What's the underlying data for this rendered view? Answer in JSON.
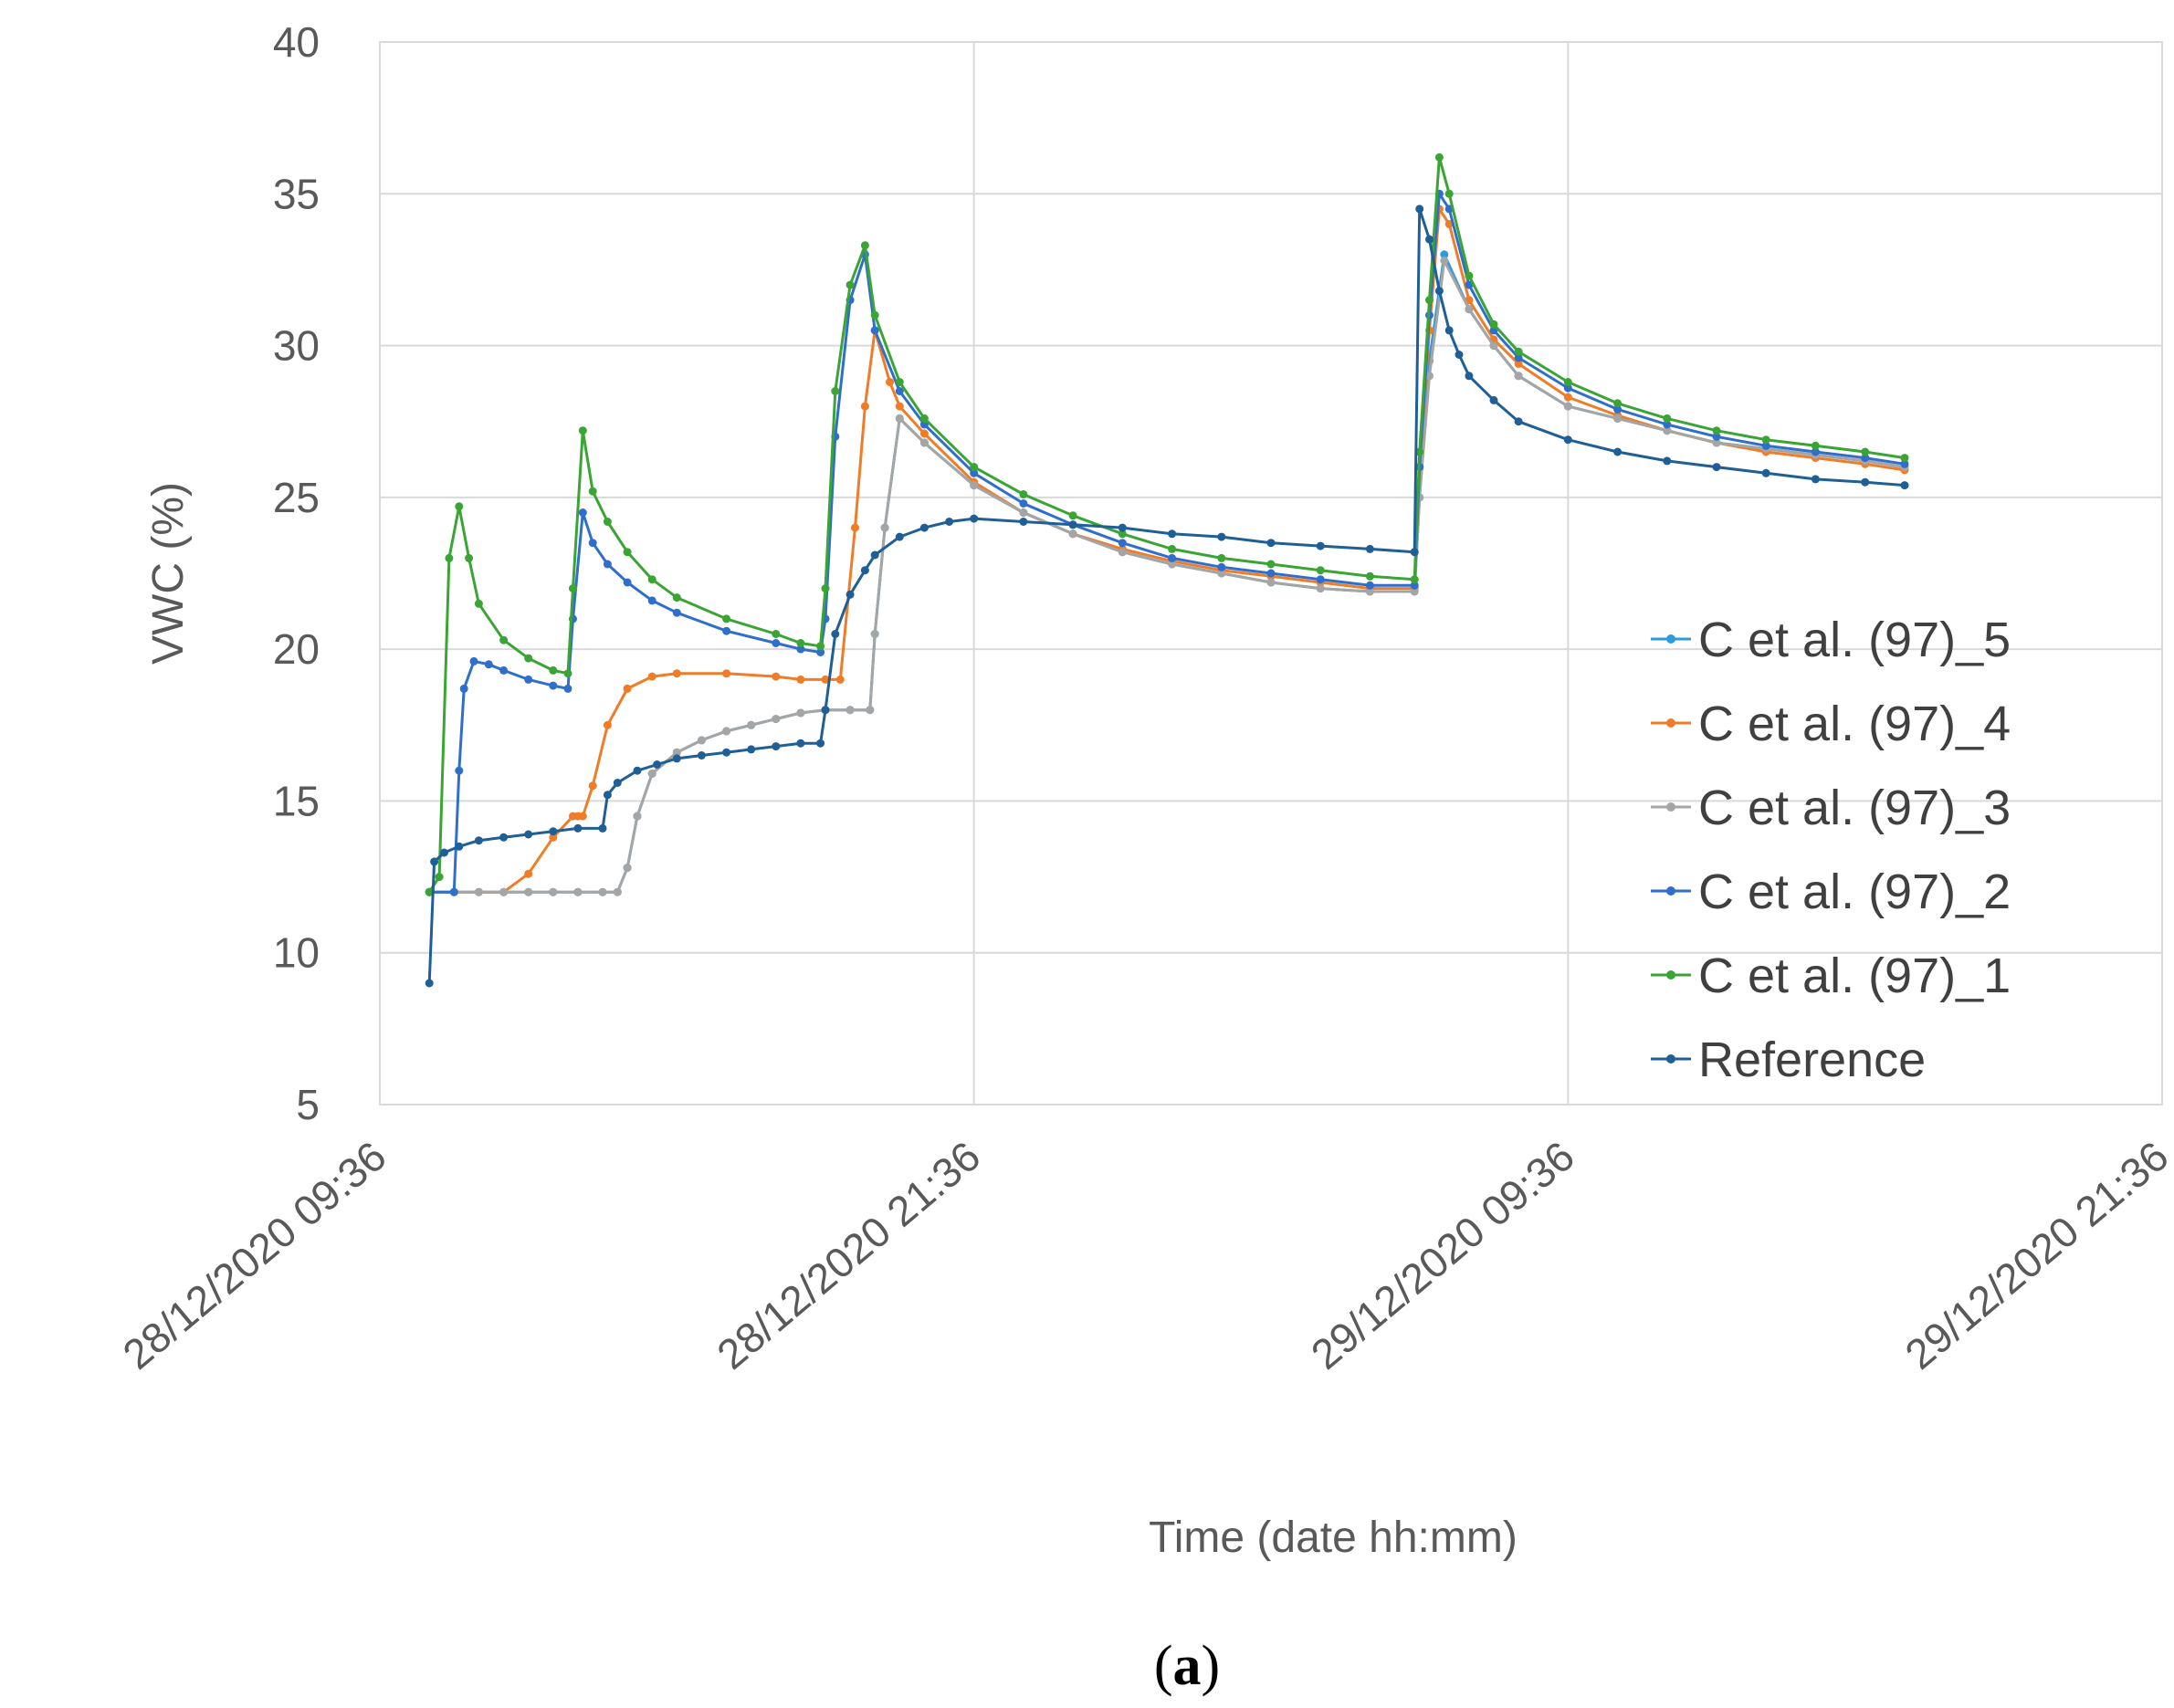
{
  "chart_data": {
    "type": "line",
    "title": "",
    "xlabel": "Time (date hh:mm)",
    "ylabel": "VWC (%)",
    "caption": {
      "open": "(",
      "letter": "a",
      "close": ")"
    },
    "ylim": [
      5,
      40
    ],
    "y_ticks": [
      "5",
      "10",
      "15",
      "20",
      "25",
      "30",
      "35",
      "40"
    ],
    "xlim": [
      0,
      36
    ],
    "x_ticks": [
      {
        "value": 0,
        "label": "28/12/2020 09:36"
      },
      {
        "value": 12,
        "label": "28/12/2020 21:36"
      },
      {
        "value": 24,
        "label": "29/12/2020 09:36"
      },
      {
        "value": 36,
        "label": "29/12/2020 21:36"
      }
    ],
    "x_units": "hours after 28/12/2020 09:36",
    "grid": true,
    "legend_position": "right",
    "series": [
      {
        "name": "C et al. (97)_5",
        "color": "#2E9BDA",
        "x": [
          1.0,
          1.5,
          2.0,
          2.5,
          3.0,
          3.5,
          4.0,
          4.5,
          4.8,
          5.0,
          5.2,
          5.5,
          6.0,
          6.5,
          7.0,
          7.5,
          8.0,
          8.5,
          9.0,
          9.5,
          9.9,
          10.0,
          10.2,
          10.5,
          11.0,
          12.0,
          13.0,
          14.0,
          15.0,
          16.0,
          17.0,
          18.0,
          19.0,
          20.0,
          20.9,
          21.0,
          21.2,
          21.5,
          22.0,
          22.5,
          23.0,
          24.0,
          25.0,
          26.0,
          27.0,
          28.0,
          29.0,
          30.0,
          30.8
        ],
        "y": [
          12,
          12,
          12,
          12,
          12,
          12,
          12,
          12,
          12,
          12.8,
          14.5,
          15.9,
          16.6,
          17.0,
          17.3,
          17.5,
          17.7,
          17.9,
          18.0,
          18.0,
          18.0,
          20.5,
          24.0,
          27.6,
          26.8,
          25.4,
          24.5,
          23.8,
          23.2,
          22.8,
          22.5,
          22.2,
          22.0,
          21.9,
          21.9,
          25.0,
          29.5,
          33.0,
          31.2,
          30.0,
          29.0,
          28.0,
          27.6,
          27.2,
          26.8,
          26.6,
          26.4,
          26.2,
          26.0
        ]
      },
      {
        "name": "C et al. (97)_4",
        "color": "#F07C28",
        "x": [
          1.0,
          1.5,
          2.0,
          2.5,
          3.0,
          3.5,
          3.9,
          4.0,
          4.1,
          4.3,
          4.6,
          5.0,
          5.5,
          6.0,
          7.0,
          8.0,
          8.5,
          9.0,
          9.3,
          9.6,
          9.8,
          10.0,
          10.3,
          10.5,
          11.0,
          12.0,
          13.0,
          14.0,
          15.0,
          16.0,
          17.0,
          18.0,
          19.0,
          20.0,
          20.9,
          21.0,
          21.2,
          21.4,
          21.6,
          22.0,
          22.5,
          23.0,
          24.0,
          25.0,
          26.0,
          27.0,
          28.0,
          29.0,
          30.0,
          30.8
        ],
        "y": [
          12,
          12,
          12,
          12,
          12.6,
          13.8,
          14.5,
          14.5,
          14.5,
          15.5,
          17.5,
          18.7,
          19.1,
          19.2,
          19.2,
          19.1,
          19.0,
          19.0,
          19.0,
          24.0,
          28.0,
          30.5,
          28.8,
          28.0,
          27.1,
          25.5,
          24.5,
          23.8,
          23.3,
          22.9,
          22.6,
          22.4,
          22.2,
          22.0,
          22.0,
          26.0,
          30.5,
          34.5,
          34.0,
          31.5,
          30.2,
          29.4,
          28.3,
          27.7,
          27.2,
          26.8,
          26.5,
          26.3,
          26.1,
          25.9
        ]
      },
      {
        "name": "C et al. (97)_3",
        "color": "#A5A5A5",
        "x": [
          1.0,
          1.5,
          2.0,
          2.5,
          3.0,
          3.5,
          4.0,
          4.5,
          4.8,
          5.0,
          5.2,
          5.5,
          6.0,
          6.5,
          7.0,
          7.5,
          8.0,
          8.5,
          9.0,
          9.5,
          9.9,
          10.0,
          10.2,
          10.5,
          11.0,
          12.0,
          13.0,
          14.0,
          15.0,
          16.0,
          17.0,
          18.0,
          19.0,
          20.0,
          20.9,
          21.0,
          21.2,
          21.5,
          22.0,
          22.5,
          23.0,
          24.0,
          25.0,
          26.0,
          27.0,
          28.0,
          29.0,
          30.0,
          30.8
        ],
        "y": [
          12,
          12,
          12,
          12,
          12,
          12,
          12,
          12,
          12,
          12.8,
          14.5,
          15.9,
          16.6,
          17.0,
          17.3,
          17.5,
          17.7,
          17.9,
          18.0,
          18.0,
          18.0,
          20.5,
          24.0,
          27.6,
          26.8,
          25.4,
          24.5,
          23.8,
          23.2,
          22.8,
          22.5,
          22.2,
          22.0,
          21.9,
          21.9,
          25.0,
          29.0,
          32.8,
          31.2,
          30.0,
          29.0,
          28.0,
          27.6,
          27.2,
          26.8,
          26.6,
          26.4,
          26.2,
          26.0
        ]
      },
      {
        "name": "C et al. (97)_2",
        "color": "#2F6FCB",
        "x": [
          1.0,
          1.5,
          1.6,
          1.7,
          1.9,
          2.2,
          2.5,
          3.0,
          3.5,
          3.8,
          3.9,
          4.1,
          4.3,
          4.6,
          5.0,
          5.5,
          6.0,
          7.0,
          8.0,
          8.5,
          8.9,
          9.0,
          9.2,
          9.5,
          9.8,
          10.0,
          10.5,
          11.0,
          12.0,
          13.0,
          14.0,
          15.0,
          16.0,
          17.0,
          18.0,
          19.0,
          20.0,
          20.9,
          21.0,
          21.2,
          21.4,
          21.6,
          22.0,
          22.5,
          23.0,
          24.0,
          25.0,
          26.0,
          27.0,
          28.0,
          29.0,
          30.0,
          30.8
        ],
        "y": [
          12,
          12,
          16,
          18.7,
          19.6,
          19.5,
          19.3,
          19.0,
          18.8,
          18.7,
          21.0,
          24.5,
          23.5,
          22.8,
          22.2,
          21.6,
          21.2,
          20.6,
          20.2,
          20.0,
          19.9,
          21.0,
          27.0,
          31.5,
          33.0,
          30.5,
          28.5,
          27.4,
          25.8,
          24.8,
          24.1,
          23.5,
          23.0,
          22.7,
          22.5,
          22.3,
          22.1,
          22.1,
          26.0,
          31.0,
          35.0,
          34.5,
          32.0,
          30.5,
          29.6,
          28.6,
          27.9,
          27.4,
          27.0,
          26.7,
          26.5,
          26.3,
          26.1
        ]
      },
      {
        "name": "C et al. (97)_1",
        "color": "#3AA534",
        "x": [
          1.0,
          1.2,
          1.4,
          1.6,
          1.8,
          2.0,
          2.5,
          3.0,
          3.5,
          3.8,
          3.9,
          4.1,
          4.3,
          4.6,
          5.0,
          5.5,
          6.0,
          7.0,
          8.0,
          8.5,
          8.9,
          9.0,
          9.2,
          9.5,
          9.8,
          10.0,
          10.5,
          11.0,
          12.0,
          13.0,
          14.0,
          15.0,
          16.0,
          17.0,
          18.0,
          19.0,
          20.0,
          20.9,
          21.0,
          21.2,
          21.4,
          21.6,
          22.0,
          22.5,
          23.0,
          24.0,
          25.0,
          26.0,
          27.0,
          28.0,
          29.0,
          30.0,
          30.8
        ],
        "y": [
          12,
          12.5,
          23.0,
          24.7,
          23.0,
          21.5,
          20.3,
          19.7,
          19.3,
          19.2,
          22.0,
          27.2,
          25.2,
          24.2,
          23.2,
          22.3,
          21.7,
          21.0,
          20.5,
          20.2,
          20.1,
          22.0,
          28.5,
          32.0,
          33.3,
          31.0,
          28.8,
          27.6,
          26.0,
          25.1,
          24.4,
          23.8,
          23.3,
          23.0,
          22.8,
          22.6,
          22.4,
          22.3,
          26.5,
          31.5,
          36.2,
          35.0,
          32.3,
          30.7,
          29.8,
          28.8,
          28.1,
          27.6,
          27.2,
          26.9,
          26.7,
          26.5,
          26.3
        ]
      },
      {
        "name": "Reference",
        "color": "#1F5F96",
        "x": [
          1.0,
          1.1,
          1.3,
          1.6,
          2.0,
          2.5,
          3.0,
          3.5,
          4.0,
          4.5,
          4.6,
          4.8,
          5.2,
          5.6,
          6.0,
          6.5,
          7.0,
          7.5,
          8.0,
          8.5,
          8.9,
          9.0,
          9.2,
          9.5,
          9.8,
          10.0,
          10.5,
          11.0,
          11.5,
          12.0,
          13.0,
          14.0,
          15.0,
          16.0,
          17.0,
          18.0,
          19.0,
          20.0,
          20.9,
          21.0,
          21.2,
          21.4,
          21.6,
          21.8,
          22.0,
          22.5,
          23.0,
          24.0,
          25.0,
          26.0,
          27.0,
          28.0,
          29.0,
          30.0,
          30.8
        ],
        "y": [
          9,
          13.0,
          13.3,
          13.5,
          13.7,
          13.8,
          13.9,
          14.0,
          14.1,
          14.1,
          15.2,
          15.6,
          16.0,
          16.2,
          16.4,
          16.5,
          16.6,
          16.7,
          16.8,
          16.9,
          16.9,
          18.0,
          20.5,
          21.8,
          22.6,
          23.1,
          23.7,
          24.0,
          24.2,
          24.3,
          24.2,
          24.1,
          24.0,
          23.8,
          23.7,
          23.5,
          23.4,
          23.3,
          23.2,
          34.5,
          33.5,
          31.8,
          30.5,
          29.7,
          29.0,
          28.2,
          27.5,
          26.9,
          26.5,
          26.2,
          26.0,
          25.8,
          25.6,
          25.5,
          25.4
        ]
      }
    ]
  }
}
